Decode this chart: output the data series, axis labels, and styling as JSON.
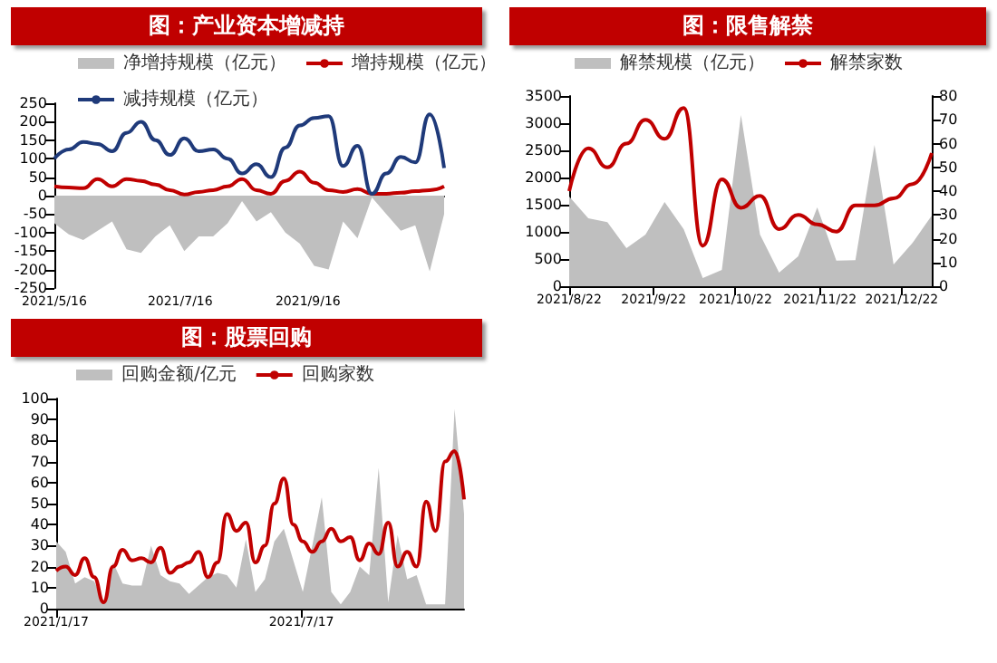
{
  "chart_data": [
    {
      "type": "line",
      "title": "图：产业资本增减持",
      "legend": "top",
      "marker": "none",
      "x": [
        "2021-05-16",
        "2021-05-23",
        "2021-05-30",
        "2021-06-06",
        "2021-06-13",
        "2021-06-20",
        "2021-06-27",
        "2021-07-04",
        "2021-07-11",
        "2021-07-18",
        "2021-07-25",
        "2021-08-01",
        "2021-08-08",
        "2021-08-15",
        "2021-08-22",
        "2021-08-29",
        "2021-09-05",
        "2021-09-12",
        "2021-09-19",
        "2021-09-26",
        "2021-10-03",
        "2021-10-10",
        "2021-10-17",
        "2021-10-24",
        "2021-10-31",
        "2021-11-07",
        "2021-11-14",
        "2021-11-21"
      ],
      "xlim": [
        "2021-05-16",
        "2021-11-21"
      ],
      "xticks": [
        {
          "value": "2021-05-16",
          "label": "2021/5/16"
        },
        {
          "value": "2021-07-16",
          "label": "2021/7/16"
        },
        {
          "value": "2021-09-16",
          "label": "2021/9/16"
        }
      ],
      "ylim": [
        -250,
        250
      ],
      "yticks": [
        -250,
        -200,
        -150,
        -100,
        -50,
        0,
        50,
        100,
        150,
        200,
        250
      ],
      "series": [
        {
          "name": "净增持规模（亿元）",
          "type": "area",
          "color": "#bfbfbf",
          "values": [
            -75,
            -105,
            -120,
            -95,
            -70,
            -145,
            -155,
            -110,
            -80,
            -150,
            -110,
            -110,
            -75,
            -15,
            -70,
            -45,
            -100,
            -130,
            -190,
            -200,
            -70,
            -115,
            -5,
            -50,
            -95,
            -80,
            -205,
            -50
          ]
        },
        {
          "name": "增持规模（亿元）",
          "type": "line",
          "color": "#c00000",
          "values": [
            25,
            22,
            20,
            45,
            25,
            45,
            40,
            30,
            15,
            3,
            10,
            15,
            25,
            45,
            15,
            5,
            40,
            65,
            35,
            15,
            10,
            18,
            5,
            5,
            8,
            12,
            15,
            25
          ]
        },
        {
          "name": "减持规模（亿元）",
          "type": "line",
          "color": "#1f3a7a",
          "values": [
            100,
            125,
            145,
            140,
            120,
            170,
            200,
            150,
            110,
            155,
            120,
            125,
            100,
            60,
            85,
            50,
            130,
            190,
            210,
            215,
            80,
            135,
            5,
            60,
            105,
            90,
            220,
            75
          ]
        }
      ]
    },
    {
      "type": "line",
      "title": "图：限售解禁",
      "legend": "top",
      "marker": "none",
      "x": [
        "2021-08-22",
        "2021-08-29",
        "2021-09-05",
        "2021-09-12",
        "2021-09-19",
        "2021-09-26",
        "2021-10-03",
        "2021-10-10",
        "2021-10-17",
        "2021-10-24",
        "2021-10-31",
        "2021-11-07",
        "2021-11-14",
        "2021-11-21",
        "2021-11-28",
        "2021-12-05",
        "2021-12-12",
        "2021-12-19",
        "2021-12-26",
        "2022-01-02"
      ],
      "xlim": [
        "2021-08-22",
        "2022-01-02"
      ],
      "xticks": [
        {
          "value": "2021-08-22",
          "label": "2021/8/22"
        },
        {
          "value": "2021-09-22",
          "label": "2021/9/22"
        },
        {
          "value": "2021-10-22",
          "label": "2021/10/22"
        },
        {
          "value": "2021-11-22",
          "label": "2021/11/22"
        },
        {
          "value": "2021-12-22",
          "label": "2021/12/22"
        }
      ],
      "ylim": [
        0,
        3500
      ],
      "yticks": [
        0,
        500,
        1000,
        1500,
        2000,
        2500,
        3000,
        3500
      ],
      "y2lim": [
        0,
        80
      ],
      "y2ticks": [
        0,
        10,
        20,
        30,
        40,
        50,
        60,
        70,
        80
      ],
      "series": [
        {
          "name": "解禁规模（亿元）",
          "type": "area",
          "color": "#bfbfbf",
          "values": [
            1650,
            1250,
            1180,
            700,
            950,
            1550,
            1050,
            150,
            300,
            3150,
            950,
            250,
            550,
            1450,
            470,
            480,
            2600,
            400,
            800,
            1300
          ]
        },
        {
          "name": "解禁家数",
          "type": "line",
          "axis": "y2",
          "color": "#c00000",
          "values": [
            40,
            58,
            50,
            60,
            70,
            62,
            75,
            17,
            45,
            33,
            38,
            24,
            30,
            26,
            23,
            34,
            34,
            37,
            43,
            56
          ]
        }
      ]
    },
    {
      "type": "line",
      "title": "图：股票回购",
      "legend": "top",
      "marker": "none",
      "x": [
        "2021-01-17",
        "2021-01-24",
        "2021-01-31",
        "2021-02-07",
        "2021-02-14",
        "2021-02-21",
        "2021-02-28",
        "2021-03-07",
        "2021-03-14",
        "2021-03-21",
        "2021-03-28",
        "2021-04-04",
        "2021-04-11",
        "2021-04-18",
        "2021-04-25",
        "2021-05-02",
        "2021-05-09",
        "2021-05-16",
        "2021-05-23",
        "2021-05-30",
        "2021-06-06",
        "2021-06-13",
        "2021-06-20",
        "2021-06-27",
        "2021-07-04",
        "2021-07-11",
        "2021-07-18",
        "2021-07-25",
        "2021-08-01",
        "2021-08-08",
        "2021-08-15",
        "2021-08-22",
        "2021-08-29",
        "2021-09-05",
        "2021-09-12",
        "2021-09-19",
        "2021-09-26",
        "2021-10-03",
        "2021-10-10",
        "2021-10-17",
        "2021-10-24",
        "2021-10-31",
        "2021-11-07",
        "2021-11-14"
      ],
      "xlim": [
        "2021-01-17",
        "2021-11-14"
      ],
      "xticks": [
        {
          "value": "2021-01-17",
          "label": "2021/1/17"
        },
        {
          "value": "2021-07-17",
          "label": "2021/7/17"
        }
      ],
      "ylim": [
        0,
        100
      ],
      "yticks": [
        0,
        10,
        20,
        30,
        40,
        50,
        60,
        70,
        80,
        90,
        100
      ],
      "series": [
        {
          "name": "回购金额/亿元",
          "type": "area",
          "color": "#bfbfbf",
          "values": [
            32,
            27,
            12,
            15,
            13,
            3,
            22,
            12,
            11,
            11,
            30,
            16,
            13,
            12,
            7,
            11,
            15,
            17,
            16,
            10,
            33,
            8,
            14,
            32,
            38,
            23,
            8,
            30,
            53,
            8,
            2,
            8,
            20,
            16,
            67,
            3,
            35,
            14,
            16,
            2,
            2,
            2,
            95,
            45
          ]
        },
        {
          "name": "回购家数",
          "type": "line",
          "color": "#c00000",
          "values": [
            18,
            20,
            16,
            24,
            15,
            3,
            20,
            28,
            23,
            24,
            22,
            29,
            17,
            20,
            22,
            27,
            15,
            22,
            45,
            37,
            41,
            22,
            30,
            50,
            62,
            40,
            32,
            27,
            32,
            38,
            32,
            34,
            23,
            31,
            26,
            41,
            20,
            27,
            20,
            51,
            37,
            70,
            75,
            52
          ]
        }
      ]
    }
  ]
}
